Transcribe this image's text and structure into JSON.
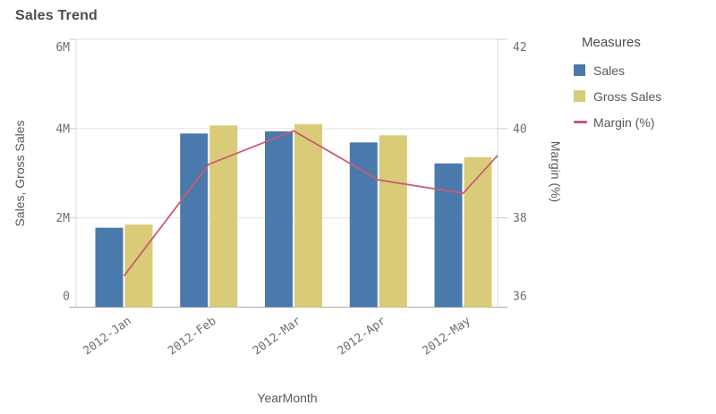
{
  "title": "Sales Trend",
  "legend": {
    "title": "Measures",
    "items": [
      {
        "label": "Sales",
        "marker": "square",
        "color": "#4a79ab"
      },
      {
        "label": "Gross Sales",
        "marker": "square",
        "color": "#d9cb77"
      },
      {
        "label": "Margin (%)",
        "marker": "line",
        "color": "#c95c72"
      }
    ]
  },
  "chart_data": {
    "type": "combo",
    "title": "Sales Trend",
    "xlabel": "YearMonth",
    "ylabel_left": "Sales, Gross Sales",
    "ylabel_right": "Margin (%)",
    "categories": [
      "2012-Jan",
      "2012-Feb",
      "2012-Mar",
      "2012-Apr",
      "2012-May"
    ],
    "series": [
      {
        "name": "Sales",
        "type": "bar",
        "axis": "left",
        "color": "#4a79ab",
        "values": [
          1.78,
          3.89,
          3.94,
          3.69,
          3.22
        ],
        "unit": "M"
      },
      {
        "name": "Gross Sales",
        "type": "bar",
        "axis": "left",
        "color": "#d9cb77",
        "values": [
          1.85,
          4.07,
          4.1,
          3.85,
          3.36
        ],
        "unit": "M"
      },
      {
        "name": "Margin (%)",
        "type": "line",
        "axis": "right",
        "color": "#c95c72",
        "values": [
          36.7,
          39.2,
          39.95,
          38.85,
          38.55
        ],
        "edge_value": 39.4
      }
    ],
    "left_axis": {
      "min": 0,
      "max": 6,
      "ticks": [
        0,
        2,
        4,
        6
      ],
      "tick_labels": [
        "0",
        "2M",
        "4M",
        "6M"
      ]
    },
    "right_axis": {
      "min": 36,
      "max": 42,
      "ticks": [
        36,
        38,
        40,
        42
      ],
      "tick_labels": [
        "36",
        "38",
        "40",
        "42"
      ]
    },
    "grid": true,
    "legend_position": "right"
  },
  "colors": {
    "sales_bar": "#4a79ab",
    "gross_sales_bar": "#d9cb77",
    "margin_line": "#c95c72",
    "gridline": "#e3e3e3",
    "axis_line": "#adadad",
    "side_axis_line": "#d9d9d9",
    "tick_stub": "#c9c9c9",
    "tick_text": "#6e6e6e",
    "title_text": "#4c4c4c"
  }
}
